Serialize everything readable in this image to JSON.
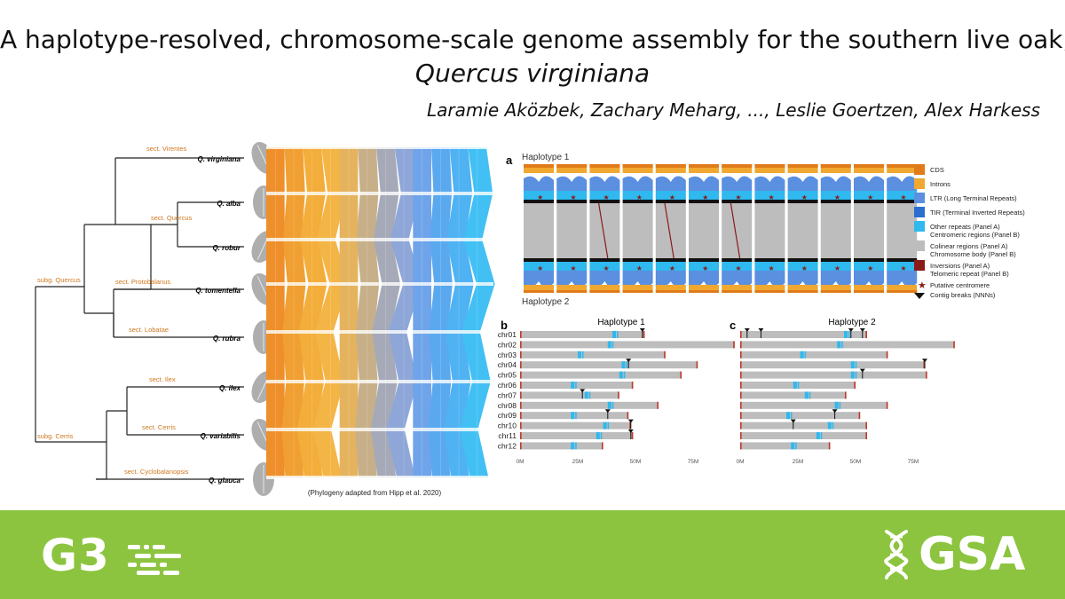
{
  "title": {
    "line1": "A haplotype-resolved, chromosome-scale genome assembly for the southern live oak,",
    "line2": "Quercus virginiana"
  },
  "authors": "Laramie Aközbek, Zachary Meharg, ..., Leslie Goertzen, Alex Harkess",
  "tree": {
    "species": [
      "Q. virginiana",
      "Q. alba",
      "Q. robur",
      "Q. tomentella",
      "Q. rubra",
      "Q. ilex",
      "Q. variabilis",
      "Q. glauca"
    ],
    "sections": [
      "sect. Virentes",
      "sect. Quercus",
      "sect. Protobalanus",
      "sect. Lobatae",
      "sect. Ilex",
      "sect. Cerris",
      "sect. Cyclobalanopsis"
    ],
    "subgenera": [
      "subg. Quercus",
      "subg. Cerris"
    ],
    "caption": "(Phylogeny adapted from Hipp et al. 2020)",
    "ribbon_colors": [
      "#ee8f2b",
      "#f0a032",
      "#f3ad3a",
      "#f4b547",
      "#e5b35e",
      "#c7b089",
      "#a6aab8",
      "#8ea7d8",
      "#6fa4ea",
      "#5aa9ef",
      "#4fb2f2",
      "#42c0f4"
    ]
  },
  "panel_a": {
    "label": "a",
    "haplotype1": "Haplotype 1",
    "haplotype2": "Haplotype 2",
    "legend": [
      {
        "text": "CDS",
        "color": "#e07b1a"
      },
      {
        "text": "Introns",
        "color": "#f0a830"
      },
      {
        "text": "LTR (Long Terminal Repeats)",
        "color": "#5b8fe0"
      },
      {
        "text": "TIR (Terminal Inverted Repeats)",
        "color": "#2a6fd0"
      },
      {
        "text": "Other repeats (Panel A)\nCentromeric regions (Panel B)",
        "color": "#2fb9ef"
      },
      {
        "text": "Colinear regions (Panel A)\nChromosome body (Panel B)",
        "color": "#bdbdbd"
      },
      {
        "text": "Inversions (Panel A)\nTelomeric repeat (Panel B)",
        "color": "#8b1a1a"
      },
      {
        "text": "Putative centromere",
        "color": "#8b1a1a"
      },
      {
        "text": "Contig breaks (NNNs)",
        "color": "#111111"
      }
    ]
  },
  "panel_b": {
    "label": "b",
    "title": "Haplotype 1",
    "lengths_M": [
      54,
      93,
      63,
      77,
      70,
      49,
      43,
      60,
      47,
      48,
      49,
      36
    ],
    "centromeres_M": [
      40,
      38,
      25,
      44,
      43,
      22,
      28,
      38,
      22,
      36,
      33,
      22
    ],
    "breaks_M": [
      [
        53
      ],
      [],
      [],
      [
        47
      ],
      [],
      [],
      [
        27
      ],
      [],
      [
        38
      ],
      [
        48
      ],
      [
        48
      ],
      []
    ]
  },
  "panel_c": {
    "label": "c",
    "title": "Haplotype 2",
    "lengths_M": [
      55,
      93,
      64,
      80,
      81,
      50,
      46,
      64,
      52,
      55,
      55,
      39
    ],
    "centromeres_M": [
      45,
      42,
      26,
      48,
      48,
      23,
      28,
      41,
      20,
      38,
      33,
      22
    ],
    "breaks_M": [
      [
        3,
        9,
        48,
        53
      ],
      [],
      [],
      [
        80
      ],
      [
        53
      ],
      [],
      [],
      [],
      [
        41
      ],
      [
        23
      ],
      [],
      []
    ]
  },
  "chromosomes": [
    "chr01",
    "chr02",
    "chr03",
    "chr04",
    "chr05",
    "chr06",
    "chr07",
    "chr08",
    "chr09",
    "chr10",
    "chr11",
    "chr12"
  ],
  "axis_ticks": [
    "0M",
    "25M",
    "50M",
    "75M"
  ],
  "footer": {
    "left_logo": "G3",
    "right_logo": "GSA"
  }
}
